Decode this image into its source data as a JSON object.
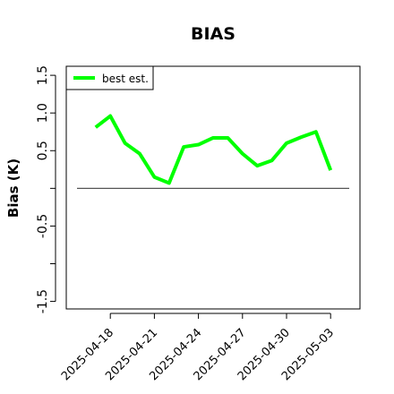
{
  "chart_data": {
    "type": "line",
    "title": "BIAS",
    "ylabel": "Bias (K)",
    "x": [
      "2025-04-17",
      "2025-04-18",
      "2025-04-19",
      "2025-04-20",
      "2025-04-21",
      "2025-04-22",
      "2025-04-23",
      "2025-04-24",
      "2025-04-25",
      "2025-04-26",
      "2025-04-27",
      "2025-04-28",
      "2025-04-29",
      "2025-04-30",
      "2025-05-01",
      "2025-05-02",
      "2025-05-03"
    ],
    "series": [
      {
        "name": "best est.",
        "color": "#00ff00",
        "values": [
          0.81,
          0.96,
          0.6,
          0.46,
          0.15,
          0.07,
          0.55,
          0.58,
          0.67,
          0.67,
          0.46,
          0.3,
          0.37,
          0.6,
          0.68,
          0.75,
          0.24
        ]
      }
    ],
    "xlim": [
      "2025-04-15",
      "2025-05-05"
    ],
    "xticks": [
      "2025-04-18",
      "2025-04-21",
      "2025-04-24",
      "2025-04-27",
      "2025-04-30",
      "2025-05-03"
    ],
    "ylim": [
      -1.6,
      1.62
    ],
    "yticks": [
      -1.5,
      -0.5,
      0.5,
      {
        "value": 1,
        "label": "1.0"
      },
      1.5
    ],
    "yticks_unlabeled": [
      0,
      -1
    ],
    "hline": 0,
    "legend": "top-left"
  }
}
